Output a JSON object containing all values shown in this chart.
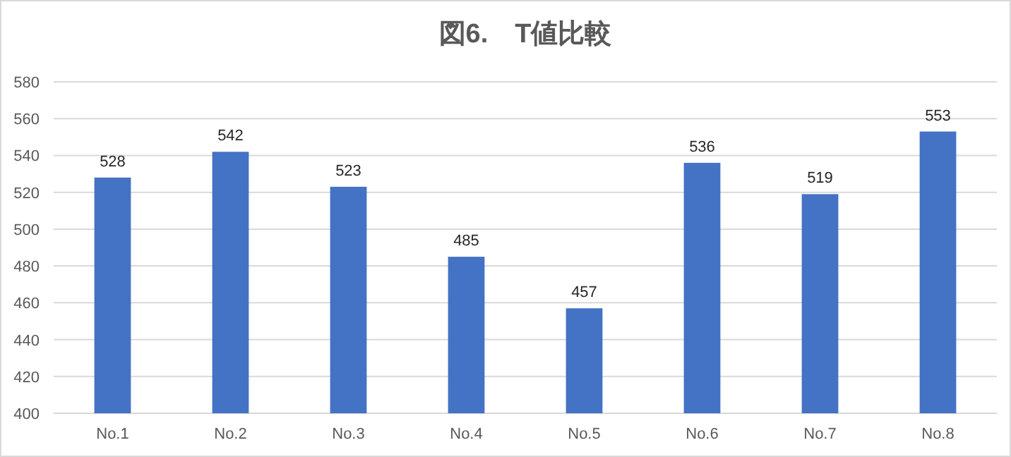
{
  "chart_data": {
    "type": "bar",
    "title": "図6.　T値比較",
    "categories": [
      "No.1",
      "No.2",
      "No.3",
      "No.4",
      "No.5",
      "No.6",
      "No.7",
      "No.8"
    ],
    "values": [
      528,
      542,
      523,
      485,
      457,
      536,
      519,
      553
    ],
    "color": "#4472c4",
    "ylim": [
      400,
      580
    ],
    "yticks": [
      400,
      420,
      440,
      460,
      480,
      500,
      520,
      540,
      560,
      580
    ],
    "grid": "y",
    "data_labels": true
  }
}
